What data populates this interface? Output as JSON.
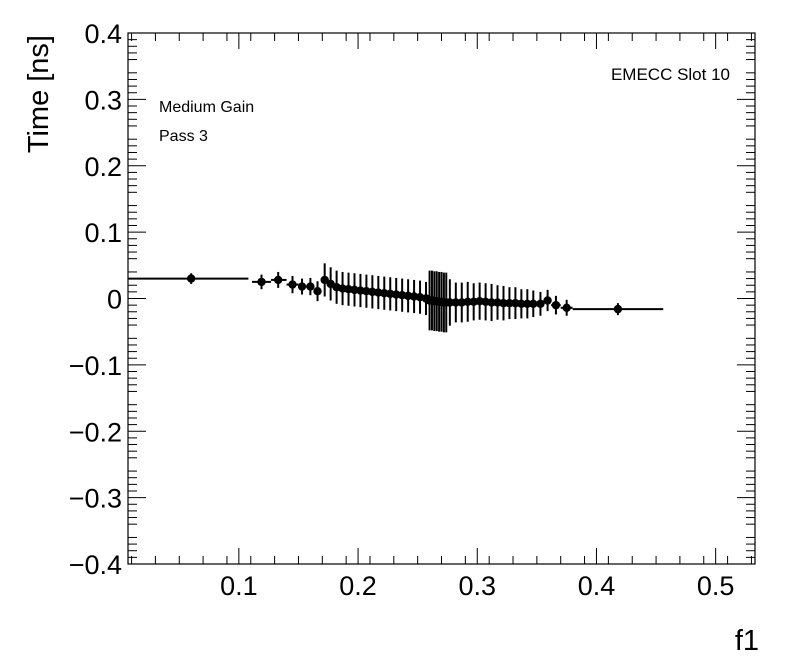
{
  "chart_data": {
    "type": "scatter",
    "title": "",
    "xlabel": "f1",
    "ylabel": "Time [ns]",
    "xlim": [
      0.007,
      0.533
    ],
    "ylim": [
      -0.4,
      0.4
    ],
    "xticks": [
      0.1,
      0.2,
      0.3,
      0.4,
      0.5
    ],
    "xtick_labels": [
      "0.1",
      "0.2",
      "0.3",
      "0.4",
      "0.5"
    ],
    "yticks": [
      -0.4,
      -0.3,
      -0.2,
      -0.1,
      0,
      0.1,
      0.2,
      0.3,
      0.4
    ],
    "ytick_labels": [
      "−0.4",
      "−0.3",
      "−0.2",
      "−0.1",
      "0",
      "0.1",
      "0.2",
      "0.3",
      "0.4"
    ],
    "grid": false,
    "legend": "none",
    "annotations": {
      "gain": "Medium Gain",
      "pass": "Pass 3",
      "slot": "EMECC Slot 10"
    },
    "color": "#000000",
    "points": [
      {
        "x": 0.06,
        "xlo": 0.007,
        "xhi": 0.108,
        "y": 0.03,
        "err": 0.008
      },
      {
        "x": 0.119,
        "xlo": 0.111,
        "xhi": 0.127,
        "y": 0.025,
        "err": 0.011
      },
      {
        "x": 0.133,
        "xlo": 0.127,
        "xhi": 0.14,
        "y": 0.028,
        "err": 0.012
      },
      {
        "x": 0.145,
        "xlo": 0.14,
        "xhi": 0.15,
        "y": 0.021,
        "err": 0.013
      },
      {
        "x": 0.153,
        "xlo": 0.15,
        "xhi": 0.157,
        "y": 0.018,
        "err": 0.012
      },
      {
        "x": 0.16,
        "xlo": 0.157,
        "xhi": 0.163,
        "y": 0.018,
        "err": 0.013
      },
      {
        "x": 0.166,
        "xlo": 0.163,
        "xhi": 0.169,
        "y": 0.011,
        "err": 0.015
      },
      {
        "x": 0.172,
        "xlo": 0.169,
        "xhi": 0.175,
        "y": 0.028,
        "err": 0.025
      },
      {
        "x": 0.177,
        "xlo": 0.175,
        "xhi": 0.18,
        "y": 0.022,
        "err": 0.025
      },
      {
        "x": 0.182,
        "xlo": 0.18,
        "xhi": 0.185,
        "y": 0.017,
        "err": 0.025
      },
      {
        "x": 0.187,
        "xlo": 0.185,
        "xhi": 0.19,
        "y": 0.015,
        "err": 0.025
      },
      {
        "x": 0.192,
        "xlo": 0.19,
        "xhi": 0.195,
        "y": 0.014,
        "err": 0.025
      },
      {
        "x": 0.197,
        "xlo": 0.195,
        "xhi": 0.2,
        "y": 0.013,
        "err": 0.025
      },
      {
        "x": 0.202,
        "xlo": 0.2,
        "xhi": 0.205,
        "y": 0.012,
        "err": 0.025
      },
      {
        "x": 0.207,
        "xlo": 0.205,
        "xhi": 0.21,
        "y": 0.011,
        "err": 0.025
      },
      {
        "x": 0.212,
        "xlo": 0.21,
        "xhi": 0.215,
        "y": 0.01,
        "err": 0.025
      },
      {
        "x": 0.217,
        "xlo": 0.215,
        "xhi": 0.22,
        "y": 0.009,
        "err": 0.025
      },
      {
        "x": 0.222,
        "xlo": 0.22,
        "xhi": 0.225,
        "y": 0.008,
        "err": 0.025
      },
      {
        "x": 0.227,
        "xlo": 0.225,
        "xhi": 0.23,
        "y": 0.007,
        "err": 0.025
      },
      {
        "x": 0.232,
        "xlo": 0.23,
        "xhi": 0.235,
        "y": 0.006,
        "err": 0.025
      },
      {
        "x": 0.237,
        "xlo": 0.235,
        "xhi": 0.24,
        "y": 0.005,
        "err": 0.025
      },
      {
        "x": 0.242,
        "xlo": 0.24,
        "xhi": 0.245,
        "y": 0.004,
        "err": 0.025
      },
      {
        "x": 0.247,
        "xlo": 0.245,
        "xhi": 0.25,
        "y": 0.003,
        "err": 0.025
      },
      {
        "x": 0.252,
        "xlo": 0.25,
        "xhi": 0.255,
        "y": 0.002,
        "err": 0.025
      },
      {
        "x": 0.257,
        "xlo": 0.255,
        "xhi": 0.259,
        "y": 0.0,
        "err": 0.025
      },
      {
        "x": 0.26,
        "xlo": 0.259,
        "xhi": 0.261,
        "y": -0.003,
        "err": 0.045
      },
      {
        "x": 0.262,
        "xlo": 0.261,
        "xhi": 0.263,
        "y": -0.003,
        "err": 0.045
      },
      {
        "x": 0.264,
        "xlo": 0.263,
        "xhi": 0.265,
        "y": -0.004,
        "err": 0.045
      },
      {
        "x": 0.266,
        "xlo": 0.265,
        "xhi": 0.267,
        "y": -0.004,
        "err": 0.045
      },
      {
        "x": 0.268,
        "xlo": 0.267,
        "xhi": 0.269,
        "y": -0.005,
        "err": 0.045
      },
      {
        "x": 0.27,
        "xlo": 0.269,
        "xhi": 0.271,
        "y": -0.005,
        "err": 0.045
      },
      {
        "x": 0.272,
        "xlo": 0.271,
        "xhi": 0.273,
        "y": -0.006,
        "err": 0.045
      },
      {
        "x": 0.274,
        "xlo": 0.273,
        "xhi": 0.275,
        "y": -0.006,
        "err": 0.045
      },
      {
        "x": 0.277,
        "xlo": 0.275,
        "xhi": 0.279,
        "y": -0.006,
        "err": 0.035
      },
      {
        "x": 0.282,
        "xlo": 0.279,
        "xhi": 0.284,
        "y": -0.006,
        "err": 0.03
      },
      {
        "x": 0.287,
        "xlo": 0.284,
        "xhi": 0.289,
        "y": -0.006,
        "err": 0.03
      },
      {
        "x": 0.292,
        "xlo": 0.289,
        "xhi": 0.294,
        "y": -0.005,
        "err": 0.03
      },
      {
        "x": 0.297,
        "xlo": 0.294,
        "xhi": 0.299,
        "y": -0.005,
        "err": 0.028
      },
      {
        "x": 0.302,
        "xlo": 0.299,
        "xhi": 0.304,
        "y": -0.004,
        "err": 0.028
      },
      {
        "x": 0.307,
        "xlo": 0.304,
        "xhi": 0.309,
        "y": -0.005,
        "err": 0.028
      },
      {
        "x": 0.312,
        "xlo": 0.309,
        "xhi": 0.314,
        "y": -0.006,
        "err": 0.028
      },
      {
        "x": 0.317,
        "xlo": 0.314,
        "xhi": 0.319,
        "y": -0.006,
        "err": 0.026
      },
      {
        "x": 0.322,
        "xlo": 0.319,
        "xhi": 0.324,
        "y": -0.007,
        "err": 0.026
      },
      {
        "x": 0.327,
        "xlo": 0.324,
        "xhi": 0.329,
        "y": -0.007,
        "err": 0.024
      },
      {
        "x": 0.332,
        "xlo": 0.329,
        "xhi": 0.334,
        "y": -0.007,
        "err": 0.024
      },
      {
        "x": 0.337,
        "xlo": 0.334,
        "xhi": 0.339,
        "y": -0.008,
        "err": 0.022
      },
      {
        "x": 0.342,
        "xlo": 0.339,
        "xhi": 0.344,
        "y": -0.008,
        "err": 0.022
      },
      {
        "x": 0.347,
        "xlo": 0.344,
        "xhi": 0.35,
        "y": -0.008,
        "err": 0.02
      },
      {
        "x": 0.353,
        "xlo": 0.35,
        "xhi": 0.356,
        "y": -0.008,
        "err": 0.018
      },
      {
        "x": 0.359,
        "xlo": 0.356,
        "xhi": 0.362,
        "y": -0.003,
        "err": 0.016
      },
      {
        "x": 0.366,
        "xlo": 0.362,
        "xhi": 0.37,
        "y": -0.01,
        "err": 0.014
      },
      {
        "x": 0.375,
        "xlo": 0.37,
        "xhi": 0.38,
        "y": -0.014,
        "err": 0.012
      },
      {
        "x": 0.418,
        "xlo": 0.38,
        "xhi": 0.456,
        "y": -0.016,
        "err": 0.009
      }
    ]
  }
}
